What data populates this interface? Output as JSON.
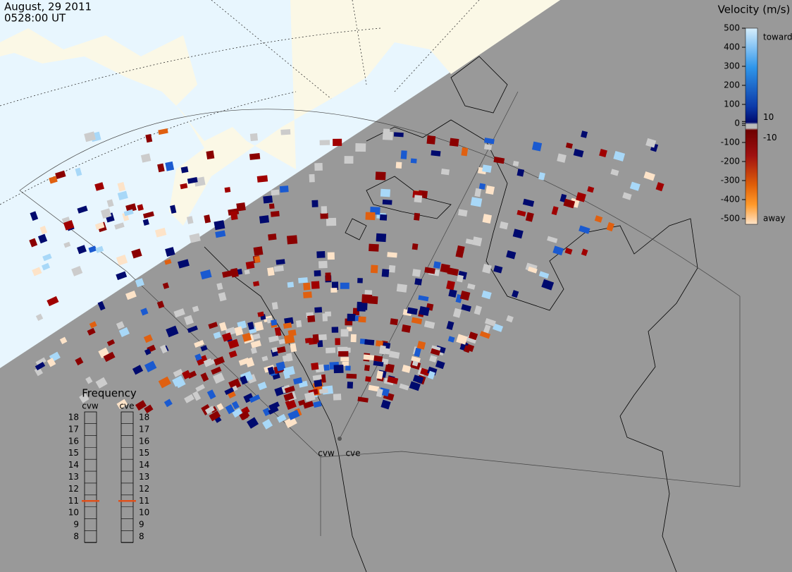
{
  "header": {
    "date": "August, 29 2011",
    "time": "0528:00 UT"
  },
  "colorbar": {
    "title": "Velocity (m/s)",
    "toward": "toward",
    "away": "away",
    "range": [
      -500,
      500
    ],
    "ticks": [
      500,
      400,
      300,
      200,
      100,
      10,
      0,
      -10,
      -100,
      -200,
      -300,
      -400,
      -500
    ]
  },
  "frequency": {
    "title": "Frequency",
    "range": [
      8,
      18
    ],
    "radars": [
      {
        "name": "cvw",
        "ticks": [
          18,
          17,
          16,
          15,
          14,
          13,
          12,
          11,
          10,
          9,
          8
        ],
        "selected": 11
      },
      {
        "name": "cve",
        "ticks": [
          18,
          17,
          16,
          15,
          14,
          13,
          12,
          11,
          10,
          9,
          8
        ],
        "selected": 11
      }
    ]
  },
  "sites": [
    "cvw",
    "cve"
  ]
}
